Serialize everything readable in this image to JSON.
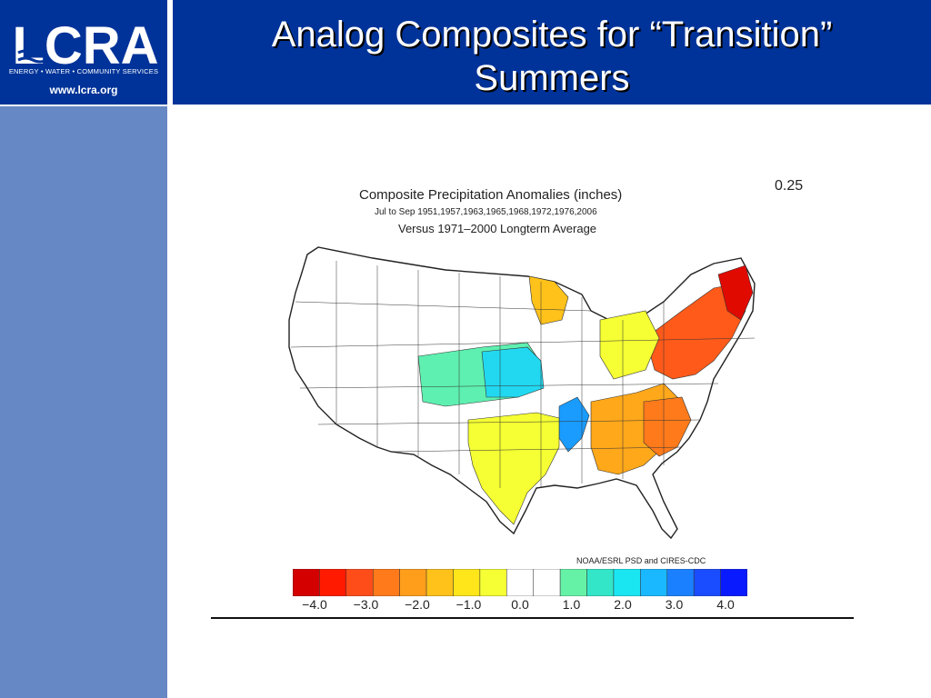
{
  "header": {
    "title_line1": "Analog Composites for “Transition”",
    "title_line2": "Summers",
    "logo": {
      "wordmark": "LCRA",
      "tagline": "ENERGY • WATER • COMMUNITY SERVICES",
      "url": "www.lcra.org"
    }
  },
  "map": {
    "title": "Composite Precipitation Anomalies (inches)",
    "subtitle": "Jul to Sep   1951,1957,1963,1965,1968,1972,1976,2006",
    "baseline": "Versus 1971–2000 Longterm Average",
    "corner_fragment": "0.25",
    "credit": "NOAA/ESRL PSD and CIRES-CDC",
    "colorbar": {
      "colors": [
        "#d40000",
        "#ff1a00",
        "#ff4d1a",
        "#ff7a1a",
        "#ff9e1a",
        "#ffc21a",
        "#ffe61a",
        "#f5ff33",
        "#ffffff",
        "#ffffff",
        "#66f2a6",
        "#33e6c8",
        "#1ae6f2",
        "#1ab8ff",
        "#1a80ff",
        "#1a4dff",
        "#0a1aff"
      ],
      "labels": [
        "−4.0",
        "−3.0",
        "−2.0",
        "−1.0",
        "0.0",
        "1.0",
        "2.0",
        "3.0",
        "4.0"
      ]
    }
  }
}
